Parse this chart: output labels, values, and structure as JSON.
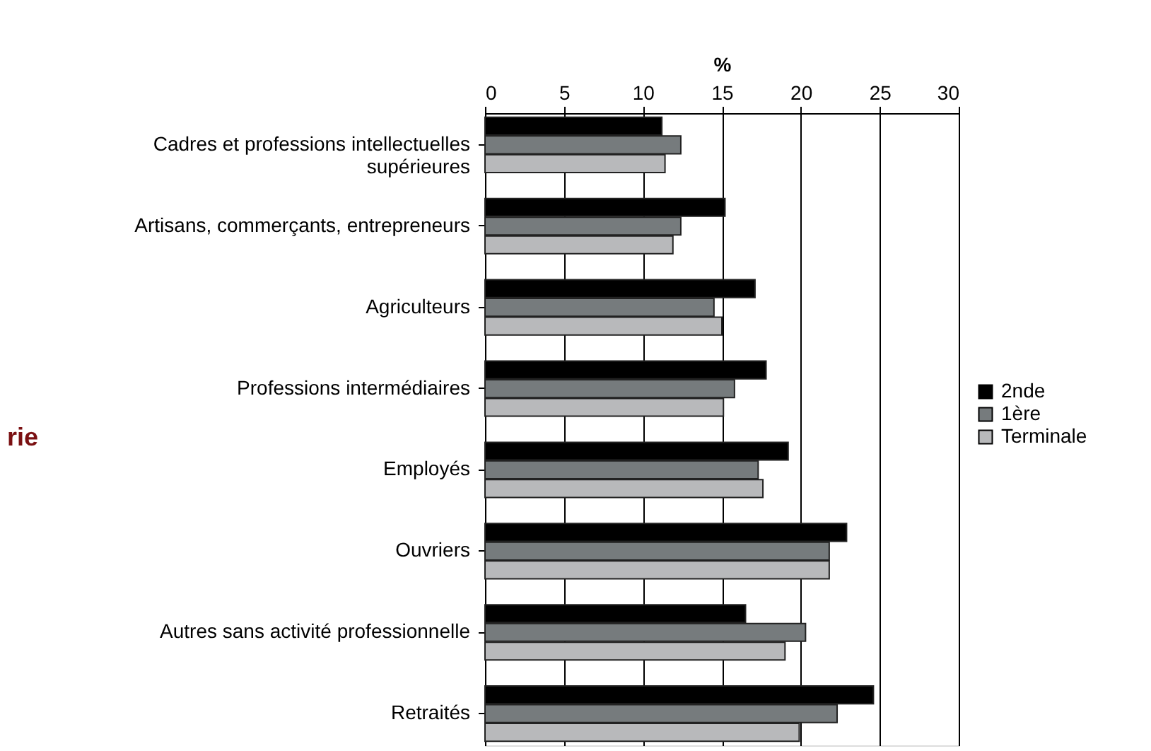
{
  "chart_data": {
    "type": "bar",
    "orientation": "horizontal",
    "xlabel": "%",
    "categories": [
      "Cadres et professions intellectuelles supérieures",
      "Artisans, commerçants, entrepreneurs",
      "Agriculteurs",
      "Professions intermédiaires",
      "Employés",
      "Ouvriers",
      "Autres sans activité professionnelle",
      "Retraités"
    ],
    "series": [
      {
        "name": "2nde",
        "color": "#000000",
        "values": [
          11.2,
          15.2,
          17.1,
          17.8,
          19.2,
          22.9,
          16.5,
          24.6
        ]
      },
      {
        "name": "1ère",
        "color": "#767b7d",
        "values": [
          12.4,
          12.4,
          14.5,
          15.8,
          17.3,
          21.8,
          20.3,
          22.3
        ]
      },
      {
        "name": "Terminale",
        "color": "#b8b9bb",
        "values": [
          11.4,
          11.9,
          15.0,
          15.1,
          17.6,
          21.8,
          19.0,
          19.9
        ]
      }
    ],
    "xlim": [
      0,
      30
    ],
    "xticks": [
      0,
      5,
      10,
      15,
      20,
      25,
      30
    ],
    "grid": "x",
    "legend": "right",
    "annotations": [
      "rie"
    ]
  }
}
